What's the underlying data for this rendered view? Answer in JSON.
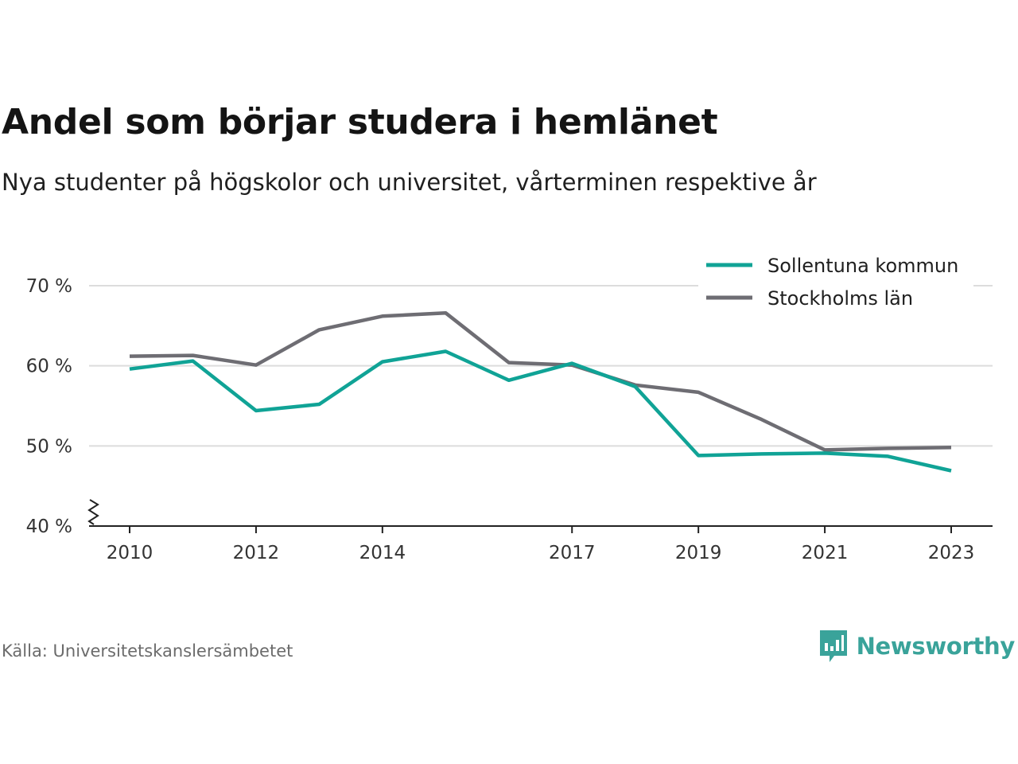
{
  "chart_data": {
    "type": "line",
    "title": "Andel som börjar studera i hemlänet",
    "subtitle": "Nya studenter på högskolor och universitet, vårterminen respektive år",
    "x": [
      2010,
      2011,
      2012,
      2013,
      2014,
      2015,
      2016,
      2017,
      2018,
      2019,
      2020,
      2021,
      2022,
      2023
    ],
    "x_tick_labels": [
      "2010",
      "2012",
      "2014",
      "2017",
      "2019",
      "2021",
      "2023"
    ],
    "x_ticks": [
      2010,
      2012,
      2014,
      2017,
      2019,
      2021,
      2023
    ],
    "y_tick_labels": [
      "40 %",
      "50 %",
      "60 %",
      "70 %"
    ],
    "y_ticks": [
      40,
      50,
      60,
      70
    ],
    "ylim": [
      40,
      70
    ],
    "grid": "horizontal",
    "axis_break": true,
    "legend_position": "top-right",
    "series": [
      {
        "name": "Sollentuna kommun",
        "color": "#10a396",
        "values": [
          59.6,
          60.6,
          54.4,
          55.2,
          60.5,
          61.8,
          58.2,
          60.3,
          57.4,
          48.8,
          49.0,
          49.1,
          48.7,
          46.9
        ]
      },
      {
        "name": "Stockholms län",
        "color": "#6e6d73",
        "values": [
          61.2,
          61.3,
          60.1,
          64.5,
          66.2,
          66.6,
          60.4,
          60.1,
          57.6,
          56.7,
          53.3,
          49.5,
          49.7,
          49.8
        ]
      }
    ]
  },
  "source": "Källa: Universitetskanslersämbetet",
  "brand": {
    "name": "Newsworthy",
    "logo_icon": "bar-chart-speech-bubble-icon",
    "color": "#3aa39a"
  }
}
